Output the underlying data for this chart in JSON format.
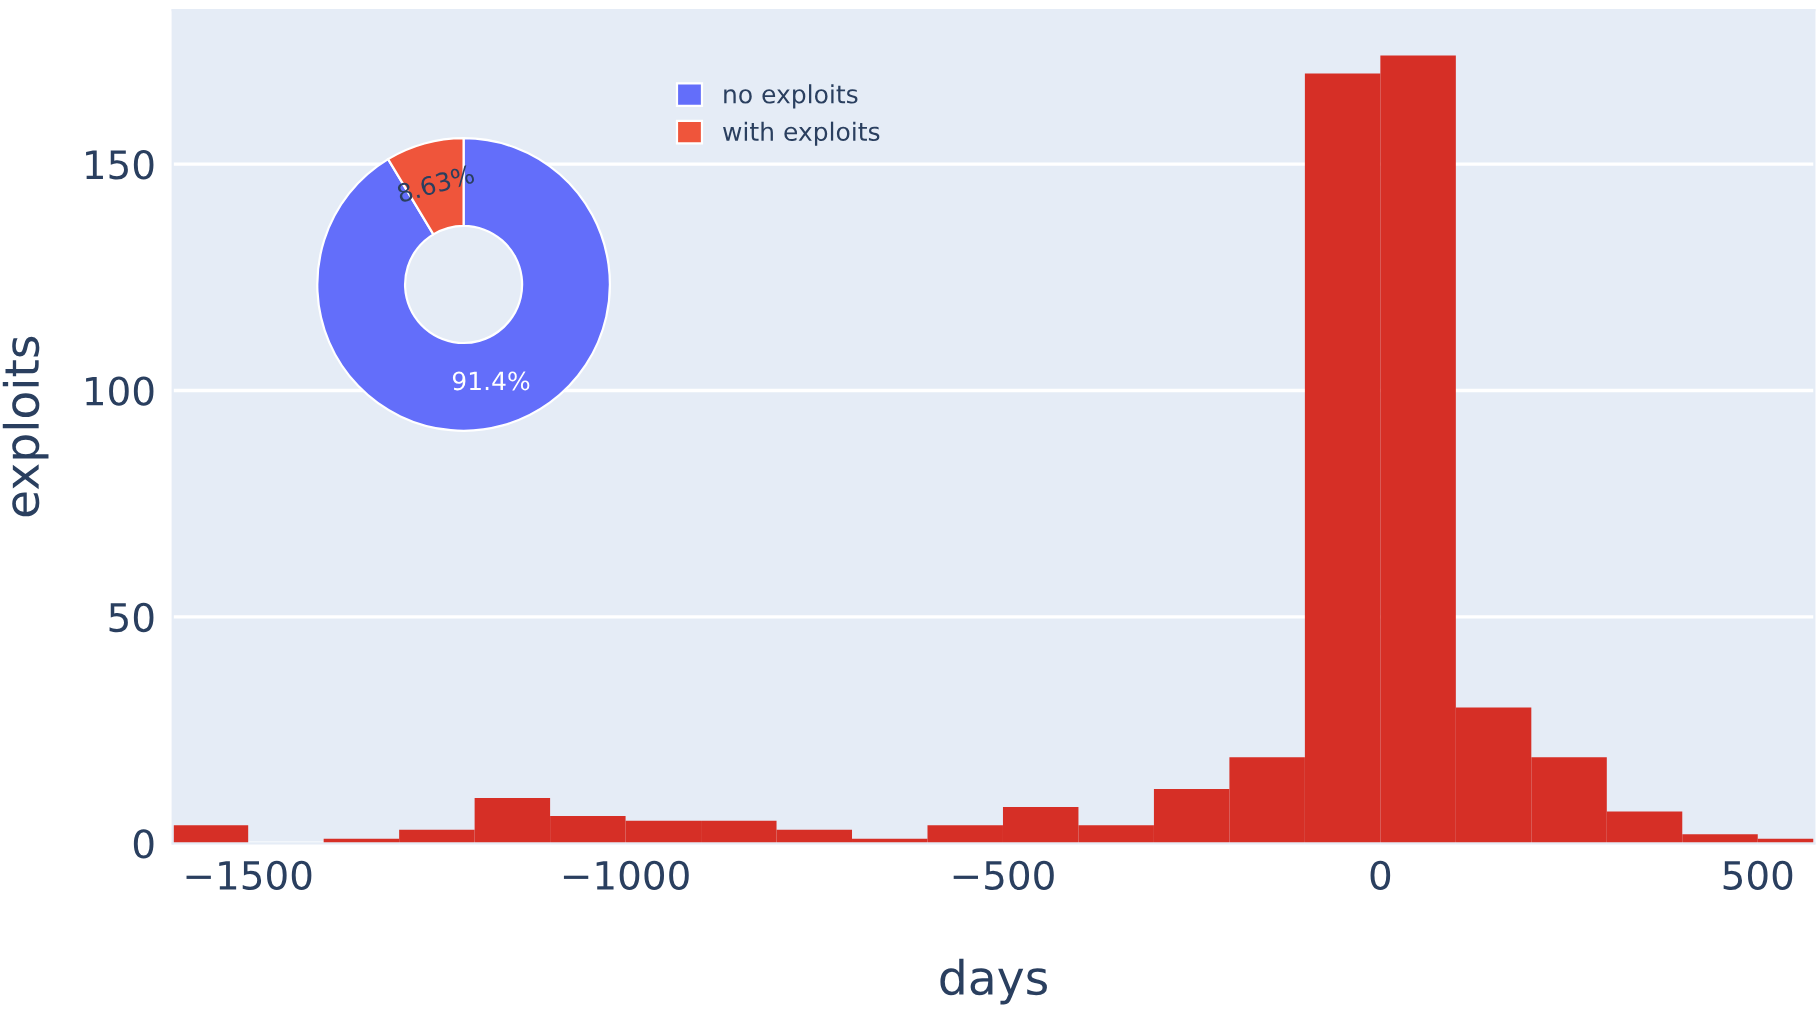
{
  "chart_data": [
    {
      "type": "histogram",
      "xlabel": "days",
      "ylabel": "exploits",
      "color": "#d62f26",
      "bins": [
        -1600,
        -1500,
        -1400,
        -1300,
        -1200,
        -1100,
        -1000,
        -900,
        -800,
        -700,
        -600,
        -500,
        -400,
        -300,
        -200,
        -100,
        0,
        100,
        200,
        300,
        400,
        500,
        600
      ],
      "values": [
        4,
        0,
        1,
        3,
        10,
        6,
        5,
        5,
        3,
        1,
        4,
        8,
        4,
        12,
        19,
        170,
        174,
        30,
        19,
        7,
        2,
        1
      ],
      "xlim": [
        -1600,
        575
      ],
      "ylim": [
        0,
        184
      ],
      "xticks": [
        {
          "value": -1500,
          "label": "−1500"
        },
        {
          "value": -1000,
          "label": "−1000"
        },
        {
          "value": -500,
          "label": "−500"
        },
        0,
        500
      ],
      "yticks": [
        0,
        50,
        100,
        150
      ],
      "grid": "y",
      "legend": false
    },
    {
      "type": "donut",
      "categories": [
        "no exploits",
        "with exploits"
      ],
      "values": [
        91.37,
        8.63
      ],
      "colors": [
        "#636efa",
        "#ef553b"
      ],
      "value_labels": [
        "91.4%",
        "8.63%"
      ],
      "legend": "top right"
    }
  ]
}
